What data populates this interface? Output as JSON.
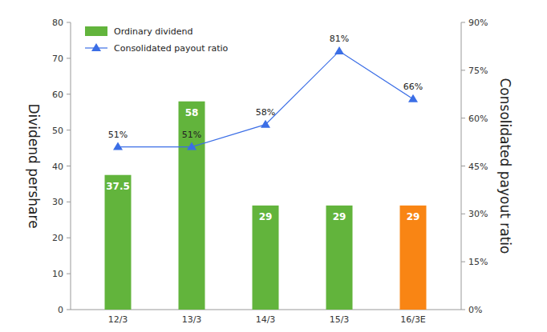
{
  "chart_data": {
    "type": "bar",
    "categories": [
      "12/3",
      "13/3",
      "14/3",
      "15/3",
      "16/3E"
    ],
    "series": [
      {
        "name": "Ordinary dividend",
        "type": "bar",
        "color": "#62b43c",
        "colors": [
          "#62b43c",
          "#62b43c",
          "#62b43c",
          "#62b43c",
          "#f98514"
        ],
        "values": [
          37.5,
          58,
          29,
          29,
          29
        ],
        "data_labels": true
      },
      {
        "name": "Consolidated payout ratio",
        "type": "line",
        "axis": "y2",
        "color": "#3b6ee6",
        "marker": "triangle",
        "line_style": "solid",
        "values": [
          51,
          51,
          58,
          81,
          66
        ],
        "value_labels": [
          "51%",
          "51%",
          "58%",
          "81%",
          "66%"
        ],
        "data_labels": true
      }
    ],
    "ylabel": "Dividend pershare",
    "y2label": "Consolidated payout ratio",
    "ylim": [
      0,
      80
    ],
    "yticks": [
      0,
      10,
      20,
      30,
      40,
      50,
      60,
      70,
      80
    ],
    "y2lim": [
      0,
      90
    ],
    "y2ticks": [
      {
        "value": 0,
        "label": "0%"
      },
      {
        "value": 15,
        "label": "15%"
      },
      {
        "value": 30,
        "label": "30%"
      },
      {
        "value": 45,
        "label": "45%"
      },
      {
        "value": 60,
        "label": "60%"
      },
      {
        "value": 75,
        "label": "75%"
      },
      {
        "value": 90,
        "label": "90%"
      }
    ],
    "legend": "upper left",
    "grid": false
  }
}
